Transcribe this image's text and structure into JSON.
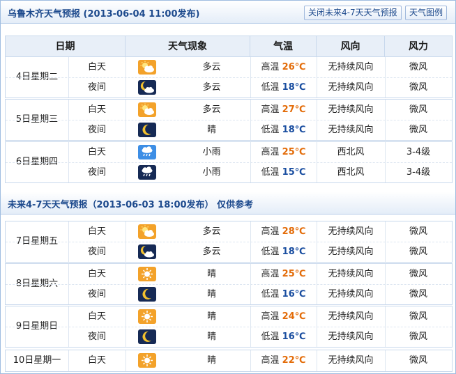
{
  "section1": {
    "title": "乌鲁木齐天气预报 (2013-06-04  11:00发布)",
    "btn_close": "关闭未来4-7天天气预报",
    "btn_legend": "天气图例"
  },
  "columns": [
    "日期",
    "天气现象",
    "气温",
    "风向",
    "风力"
  ],
  "section2": {
    "title": "未来4-7天天气预报（2013-06-03 18:00发布）   仅供参考"
  },
  "days1": [
    {
      "date": "4日星期二",
      "rows": [
        {
          "period": "白天",
          "icon": "partly-cloudy-day-icon",
          "weather": "多云",
          "temp_label": "高温",
          "temp": "26℃",
          "wind_dir": "无持续风向",
          "wind_force": "微风"
        },
        {
          "period": "夜间",
          "icon": "partly-cloudy-night-icon",
          "weather": "多云",
          "temp_label": "低温",
          "temp": "18℃",
          "wind_dir": "无持续风向",
          "wind_force": "微风"
        }
      ]
    },
    {
      "date": "5日星期三",
      "rows": [
        {
          "period": "白天",
          "icon": "partly-cloudy-day-icon",
          "weather": "多云",
          "temp_label": "高温",
          "temp": "27℃",
          "wind_dir": "无持续风向",
          "wind_force": "微风"
        },
        {
          "period": "夜间",
          "icon": "moon-icon",
          "weather": "晴",
          "temp_label": "低温",
          "temp": "18℃",
          "wind_dir": "无持续风向",
          "wind_force": "微风"
        }
      ]
    },
    {
      "date": "6日星期四",
      "rows": [
        {
          "period": "白天",
          "icon": "light-rain-day-icon",
          "weather": "小雨",
          "temp_label": "高温",
          "temp": "25℃",
          "wind_dir": "西北风",
          "wind_force": "3-4级"
        },
        {
          "period": "夜间",
          "icon": "light-rain-night-icon",
          "weather": "小雨",
          "temp_label": "低温",
          "temp": "15℃",
          "wind_dir": "西北风",
          "wind_force": "3-4级"
        }
      ]
    }
  ],
  "days2": [
    {
      "date": "7日星期五",
      "rows": [
        {
          "period": "白天",
          "icon": "partly-cloudy-day-icon",
          "weather": "多云",
          "temp_label": "高温",
          "temp": "28℃",
          "wind_dir": "无持续风向",
          "wind_force": "微风"
        },
        {
          "period": "夜间",
          "icon": "partly-cloudy-night-icon",
          "weather": "多云",
          "temp_label": "低温",
          "temp": "18℃",
          "wind_dir": "无持续风向",
          "wind_force": "微风"
        }
      ]
    },
    {
      "date": "8日星期六",
      "rows": [
        {
          "period": "白天",
          "icon": "sun-icon",
          "weather": "晴",
          "temp_label": "高温",
          "temp": "25℃",
          "wind_dir": "无持续风向",
          "wind_force": "微风"
        },
        {
          "period": "夜间",
          "icon": "moon-icon",
          "weather": "晴",
          "temp_label": "低温",
          "temp": "16℃",
          "wind_dir": "无持续风向",
          "wind_force": "微风"
        }
      ]
    },
    {
      "date": "9日星期日",
      "rows": [
        {
          "period": "白天",
          "icon": "sun-icon",
          "weather": "晴",
          "temp_label": "高温",
          "temp": "24℃",
          "wind_dir": "无持续风向",
          "wind_force": "微风"
        },
        {
          "period": "夜间",
          "icon": "moon-icon",
          "weather": "晴",
          "temp_label": "低温",
          "temp": "16℃",
          "wind_dir": "无持续风向",
          "wind_force": "微风"
        }
      ]
    },
    {
      "date": "10日星期一",
      "rows": [
        {
          "period": "白天",
          "icon": "sun-icon",
          "weather": "晴",
          "temp_label": "高温",
          "temp": "22℃",
          "wind_dir": "无持续风向",
          "wind_force": "微风"
        }
      ]
    }
  ],
  "colors": {
    "accent": "#1d4a8d",
    "high": "#e36c09",
    "low": "#1a4ea0"
  }
}
